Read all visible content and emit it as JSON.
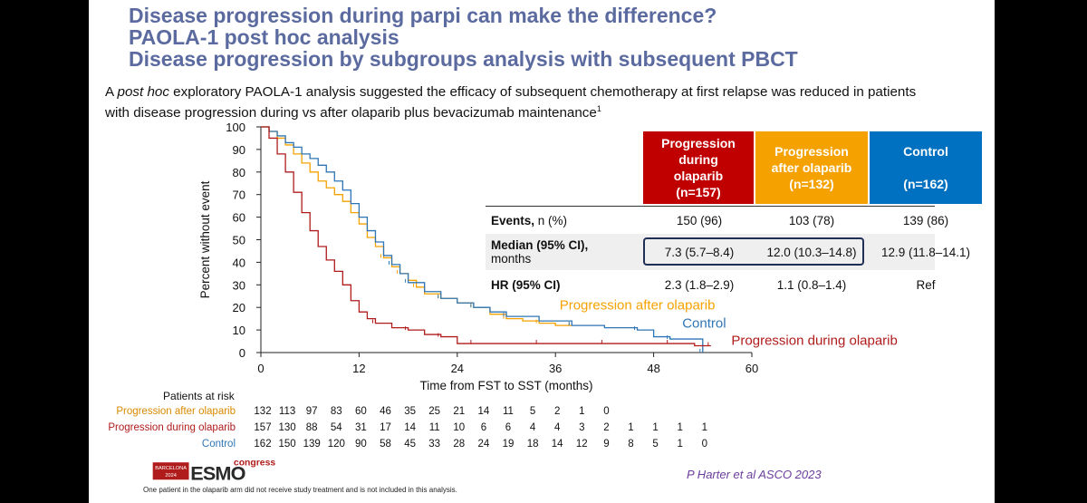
{
  "title_lines": [
    "Disease progression during parpi can make the difference?",
    "PAOLA-1 post hoc analysis",
    "Disease progression by subgroups analysis with subsequent PBCT"
  ],
  "subtitle": {
    "pre": "A ",
    "italic": "post hoc",
    "post": " exploratory PAOLA-1 analysis suggested the efficacy of subsequent chemotherapy at first relapse was reduced in patients with disease progression during vs after olaparib plus bevacizumab maintenance",
    "sup": "1"
  },
  "table": {
    "headers": [
      {
        "text": "Progression during olaparib (n=157)",
        "color": "#c00000"
      },
      {
        "text": "Progression after olaparib (n=132)",
        "color": "#f5a200"
      },
      {
        "text": "Control (n=162)",
        "color": "#0070c0"
      }
    ],
    "header_lines": [
      [
        "Progression",
        "during",
        "olaparib",
        "(n=157)"
      ],
      [
        "Progression",
        "after olaparib",
        "(n=132)"
      ],
      [
        "Control",
        "",
        "(n=162)"
      ]
    ],
    "rows": [
      {
        "label_bold": "Events,",
        "label_rest": " n (%)",
        "label2": "",
        "values": [
          "150 (96)",
          "103 (78)",
          "139 (86)"
        ]
      },
      {
        "label_bold": "Median (95% CI),",
        "label_rest": "",
        "label2": "months",
        "values": [
          "7.3 (5.7–8.4)",
          "12.0 (10.3–14.8)",
          "12.9 (11.8–14.1)"
        ]
      },
      {
        "label_bold": "HR (95% CI)",
        "label_rest": "",
        "label2": "",
        "values": [
          "2.3 (1.8–2.9)",
          "1.1 (0.8–1.4)",
          "Ref"
        ]
      }
    ]
  },
  "chart_data": {
    "type": "line",
    "ylabel": "Percent without event",
    "xlabel": "Time from FST to SST (months)",
    "xlim": [
      0,
      60
    ],
    "ylim": [
      0,
      100
    ],
    "xticks": [
      0,
      12,
      24,
      36,
      48,
      60
    ],
    "yticks": [
      0,
      10,
      20,
      30,
      40,
      50,
      60,
      70,
      80,
      90,
      100
    ],
    "series": [
      {
        "name": "Progression after olaparib",
        "color": "#f5a200",
        "x": [
          0,
          1,
          2,
          3,
          4,
          5,
          6,
          7,
          8,
          9,
          10,
          11,
          12,
          13,
          14,
          15,
          16,
          17,
          18,
          19,
          20,
          22,
          24,
          26,
          28,
          30,
          32,
          34,
          36,
          38
        ],
        "y": [
          100,
          98,
          95,
          92,
          88,
          84,
          80,
          76,
          73,
          70,
          67,
          62,
          57,
          51,
          47,
          42,
          38,
          35,
          32,
          29,
          26,
          24,
          22,
          20,
          17,
          15,
          14,
          13,
          12,
          12
        ]
      },
      {
        "name": "Control",
        "color": "#2e75b6",
        "x": [
          0,
          1,
          2,
          3,
          4,
          5,
          6,
          7,
          8,
          9,
          10,
          11,
          12,
          13,
          14,
          15,
          16,
          17,
          18,
          20,
          22,
          24,
          26,
          28,
          30,
          34,
          38,
          42,
          46,
          48,
          50,
          53,
          54
        ],
        "y": [
          100,
          98,
          96,
          93,
          91,
          88,
          86,
          83,
          80,
          76,
          72,
          66,
          60,
          54,
          49,
          43,
          39,
          35,
          31,
          27,
          24,
          22,
          20,
          18,
          16,
          14,
          12,
          11,
          10,
          7,
          6,
          6,
          0
        ]
      },
      {
        "name": "Progression during olaparib",
        "color": "#b01c1c",
        "x": [
          0,
          1,
          2,
          3,
          4,
          5,
          6,
          7,
          8,
          9,
          10,
          11,
          12,
          13,
          14,
          16,
          18,
          20,
          22,
          24,
          26,
          30,
          34,
          38,
          42,
          46,
          50,
          53,
          55
        ],
        "y": [
          100,
          95,
          88,
          80,
          71,
          62,
          54,
          47,
          41,
          36,
          30,
          23,
          18,
          15,
          13,
          11,
          10,
          8,
          7,
          4,
          4,
          4,
          4,
          4,
          4,
          4,
          4,
          3,
          3
        ]
      }
    ],
    "annotations": [
      {
        "text": "Progression after olaparib",
        "color": "#f5a200",
        "x": 36.5,
        "y": 19
      },
      {
        "text": "Control",
        "color": "#2e75b6",
        "x": 51.5,
        "y": 11
      },
      {
        "text": "Progression during olaparib",
        "color": "#b01c1c",
        "x": 57.5,
        "y": 3.5
      }
    ]
  },
  "risk_table": {
    "title": "Patients at risk",
    "rows": [
      {
        "name": "Progression after olaparib",
        "color": "#d98a00",
        "values": [
          "132",
          "113",
          "97",
          "83",
          "60",
          "46",
          "35",
          "25",
          "21",
          "14",
          "11",
          "5",
          "2",
          "1",
          "0"
        ]
      },
      {
        "name": "Progression during olaparib",
        "color": "#b01c1c",
        "values": [
          "157",
          "130",
          "88",
          "54",
          "31",
          "17",
          "14",
          "11",
          "10",
          "6",
          "6",
          "4",
          "4",
          "3",
          "2",
          "1",
          "1",
          "1",
          "1"
        ]
      },
      {
        "name": "Control",
        "color": "#2e75b6",
        "values": [
          "162",
          "150",
          "139",
          "120",
          "90",
          "58",
          "45",
          "33",
          "28",
          "24",
          "19",
          "18",
          "14",
          "12",
          "9",
          "8",
          "5",
          "1",
          "0"
        ]
      }
    ]
  },
  "logo": {
    "city": "BARCELONA",
    "year": "2024",
    "brand": "ESMO",
    "suffix": "congress"
  },
  "citation": "P Harter et al ASCO 2023",
  "footnote": "One patient in the olaparib arm did not receive study treatment and is not included in this analysis."
}
